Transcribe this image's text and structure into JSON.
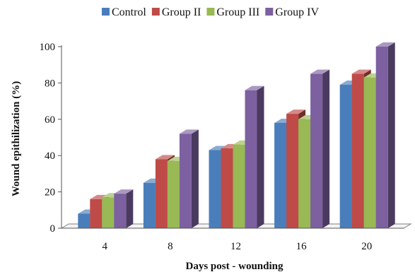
{
  "chart_data": {
    "type": "bar",
    "xlabel": "Days post - wounding",
    "ylabel": "Wound epithilization (%)",
    "categories": [
      "4",
      "8",
      "12",
      "16",
      "20"
    ],
    "yticks": [
      "0",
      "20",
      "40",
      "60",
      "80",
      "100"
    ],
    "ylim": [
      0,
      100
    ],
    "grid": false,
    "legend_position": "top",
    "three_d": true,
    "series": [
      {
        "name": "Control",
        "color": "#4a7ebb",
        "values": [
          8,
          25,
          43,
          58,
          79
        ]
      },
      {
        "name": "Group II",
        "color": "#be4b48",
        "values": [
          16,
          38,
          44,
          63,
          85
        ]
      },
      {
        "name": "Group III",
        "color": "#98b954",
        "values": [
          17,
          37,
          46,
          60,
          83
        ]
      },
      {
        "name": "Group IV",
        "color": "#7d60a0",
        "values": [
          19,
          52,
          76,
          85,
          100
        ]
      }
    ]
  }
}
